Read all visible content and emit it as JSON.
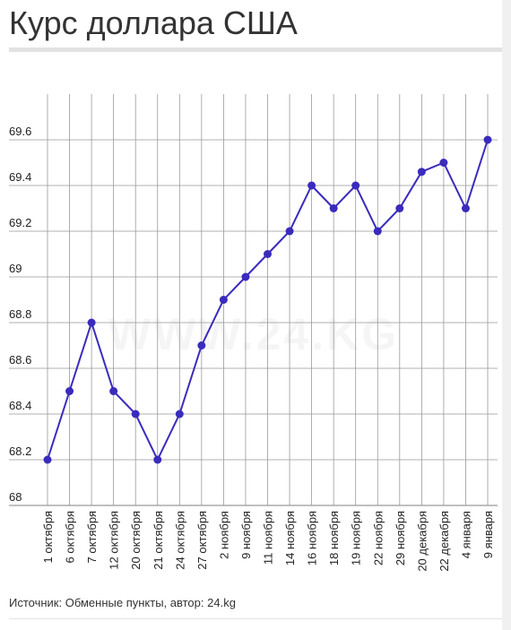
{
  "header": {
    "title": "Курс доллара США"
  },
  "footer": {
    "source": "Источник: Обменные пункты, автор: 24.kg"
  },
  "watermark": "WWW.24.KG",
  "colors": {
    "line": "#3a2bbd",
    "point": "#3a2bbd",
    "grid": "#999999"
  },
  "chart_data": {
    "type": "line",
    "title": "Курс доллара США",
    "xlabel": "",
    "ylabel": "",
    "ylim": [
      68,
      69.8
    ],
    "yticks": [
      68,
      68.2,
      68.4,
      68.6,
      68.8,
      69,
      69.2,
      69.4,
      69.6
    ],
    "ytick_labels": [
      "68",
      "68.2",
      "68.4",
      "68.6",
      "68.8",
      "69",
      "69.2",
      "69.4",
      "69.6"
    ],
    "grid": true,
    "categories": [
      "1 октября",
      "6 октября",
      "7 октября",
      "12 октября",
      "20 октября",
      "21 октября",
      "24 октября",
      "27 октября",
      "2 ноября",
      "9 ноября",
      "11 ноября",
      "14 ноября",
      "16 ноября",
      "18 ноября",
      "19 ноября",
      "22 ноября",
      "29 ноября",
      "20 декабря",
      "22 декабря",
      "4 января",
      "9 января"
    ],
    "series": [
      {
        "values": [
          68.2,
          68.5,
          68.8,
          68.5,
          68.4,
          68.2,
          68.4,
          68.7,
          68.9,
          69.0,
          69.1,
          69.2,
          69.4,
          69.3,
          69.4,
          69.2,
          69.3,
          69.46,
          69.5,
          69.3,
          69.6
        ]
      }
    ]
  }
}
